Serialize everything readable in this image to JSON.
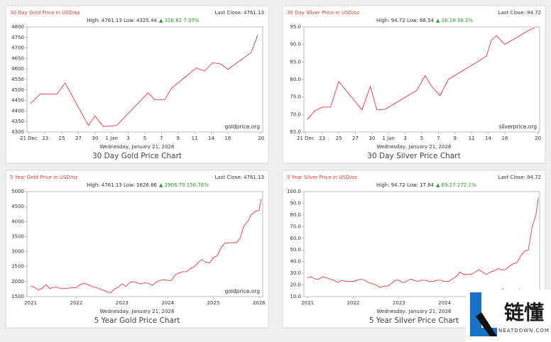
{
  "chart_data": [
    {
      "type": "line",
      "title": "30 Day Gold Price in USD/oz",
      "last_close": "Last Close: 4761.13",
      "stats": "High: 4761.13 Low: 4325.44",
      "change": "▲ 326.82 7.37%",
      "watermark": "goldprice.org",
      "date": "Wednesday, January 21, 2026",
      "caption": "30 Day Gold Price Chart",
      "x": [
        0.1,
        0.7,
        1.2,
        1.7,
        2.2,
        3.6,
        4.0,
        4.5,
        5.3,
        7.2,
        7.6,
        8.2,
        8.6,
        10.1,
        10.6,
        11.1,
        11.6,
        12.0,
        13.4,
        13.8
      ],
      "series": [
        {
          "color": "#e8383d",
          "values": [
            4435,
            4480,
            4481,
            4480,
            4533,
            4331,
            4376,
            4326,
            4331,
            4487,
            4453,
            4453,
            4508,
            4605,
            4590,
            4630,
            4623,
            4598,
            4678,
            4761.13
          ]
        }
      ],
      "xlim": [
        -0.1,
        14.1
      ],
      "ylim": [
        4300,
        4800
      ],
      "xticks": [
        {
          "value": 0,
          "label": "21 Dec"
        },
        {
          "value": 1,
          "label": "23"
        },
        {
          "value": 2,
          "label": "25"
        },
        {
          "value": 3,
          "label": "27"
        },
        {
          "value": 4,
          "label": "30"
        },
        {
          "value": 5,
          "label": "1 Jan"
        },
        {
          "value": 6,
          "label": "3"
        },
        {
          "value": 7,
          "label": "5"
        },
        {
          "value": 8,
          "label": "7"
        },
        {
          "value": 9,
          "label": "9"
        },
        {
          "value": 10,
          "label": "11"
        },
        {
          "value": 11,
          "label": "14"
        },
        {
          "value": 12,
          "label": "16"
        },
        {
          "value": 14,
          "label": "20"
        }
      ],
      "yticks": [
        4300,
        4350,
        4400,
        4450,
        4500,
        4550,
        4600,
        4650,
        4700,
        4750,
        4800
      ]
    },
    {
      "type": "line",
      "title": "30 Day Silver Price in USD/oz",
      "last_close": "Last Close: 94.72",
      "stats": "High: 94.72 Low: 68.54",
      "change": "▲ 26.18 38.2%",
      "watermark": "silverprice.org",
      "date": "Wednesday, January 21, 2026",
      "caption": "30 Day Silver Price Chart",
      "x": [
        0.1,
        0.55,
        1.0,
        1.5,
        2.0,
        3.4,
        3.9,
        4.3,
        4.8,
        6.7,
        7.2,
        7.6,
        8.1,
        8.6,
        10.4,
        10.9,
        11.2,
        11.5,
        12.0,
        13.5,
        13.8
      ],
      "series": [
        {
          "color": "#e8383d",
          "values": [
            68.54,
            71,
            72.1,
            72.1,
            79.4,
            71.3,
            78,
            71.3,
            71.5,
            76.9,
            81.1,
            78,
            75.4,
            80,
            85.2,
            86.7,
            91.3,
            92.5,
            90,
            94.2,
            94.72
          ]
        }
      ],
      "xlim": [
        -0.1,
        14.1
      ],
      "ylim": [
        65,
        95
      ],
      "xticks": [
        {
          "value": 0,
          "label": "21 Dec"
        },
        {
          "value": 1,
          "label": "23"
        },
        {
          "value": 2,
          "label": "25"
        },
        {
          "value": 3,
          "label": "27"
        },
        {
          "value": 4,
          "label": "30"
        },
        {
          "value": 5,
          "label": "1 Jan"
        },
        {
          "value": 6,
          "label": "3"
        },
        {
          "value": 7,
          "label": "5"
        },
        {
          "value": 8,
          "label": "7"
        },
        {
          "value": 9,
          "label": "9"
        },
        {
          "value": 10,
          "label": "11"
        },
        {
          "value": 11,
          "label": "14"
        },
        {
          "value": 12,
          "label": "16"
        },
        {
          "value": 14,
          "label": "20"
        }
      ],
      "yticks": [
        {
          "value": 65,
          "label": "65.0"
        },
        {
          "value": 70,
          "label": "70.0"
        },
        {
          "value": 75,
          "label": "75.0"
        },
        {
          "value": 80,
          "label": "80.0"
        },
        {
          "value": 85,
          "label": "85.0"
        },
        {
          "value": 90,
          "label": "90.0"
        },
        {
          "value": 95,
          "label": "95.0"
        }
      ]
    },
    {
      "type": "line",
      "title": "5 Year Gold Price in USD/oz",
      "last_close": "Last Close: 4761.13",
      "stats": "High: 4761.13 Low: 1626.86",
      "change": "▲ 2906.79 156.76%",
      "watermark": "goldprice.org",
      "date": "Wednesday, January 21, 2026",
      "caption": "5 Year Gold Price Chart",
      "x": [
        2021,
        2021.083,
        2021.167,
        2021.25,
        2021.333,
        2021.417,
        2021.5,
        2021.583,
        2021.667,
        2021.75,
        2021.833,
        2021.917,
        2022,
        2022.083,
        2022.167,
        2022.25,
        2022.333,
        2022.417,
        2022.5,
        2022.583,
        2022.667,
        2022.75,
        2022.833,
        2022.917,
        2023,
        2023.083,
        2023.167,
        2023.25,
        2023.333,
        2023.417,
        2023.5,
        2023.583,
        2023.667,
        2023.75,
        2023.833,
        2023.917,
        2024,
        2024.083,
        2024.167,
        2024.25,
        2024.333,
        2024.417,
        2024.5,
        2024.583,
        2024.667,
        2024.75,
        2024.833,
        2024.917,
        2025,
        2025.083,
        2025.167,
        2025.25,
        2025.333,
        2025.417,
        2025.5,
        2025.583,
        2025.667,
        2025.75,
        2025.833,
        2025.917,
        2026,
        2026.05
      ],
      "series": [
        {
          "color": "#e8383d",
          "values": [
            1850,
            1810,
            1720,
            1770,
            1900,
            1770,
            1810,
            1810,
            1760,
            1780,
            1780,
            1800,
            1800,
            1900,
            1940,
            1900,
            1840,
            1810,
            1760,
            1720,
            1660,
            1626.86,
            1750,
            1810,
            1930,
            1830,
            1970,
            2000,
            1960,
            1920,
            1960,
            1940,
            1870,
            1990,
            2040,
            2060,
            2040,
            2040,
            2230,
            2290,
            2330,
            2330,
            2440,
            2500,
            2630,
            2740,
            2650,
            2620,
            2800,
            2860,
            3120,
            3290,
            3290,
            3300,
            3290,
            3440,
            3850,
            4000,
            4230,
            4330,
            4380,
            4761.13
          ]
        }
      ],
      "xlim": [
        2020.92,
        2026.08
      ],
      "ylim": [
        1500,
        5000
      ],
      "xticks": [
        2021,
        2022,
        2023,
        2024,
        2025,
        2026
      ],
      "yticks": [
        1500,
        2000,
        2500,
        3000,
        3500,
        4000,
        4500,
        5000
      ]
    },
    {
      "type": "line",
      "title": "5 Year Silver Price in USD/oz",
      "last_close": "Last Close: 94.72",
      "stats": "High: 94.72 Low: 17.84",
      "change": "▲ 69.27 272.1%",
      "watermark": "silverprice.org",
      "date": "Wednesday, January 21, 2026",
      "caption": "5 Year Silver Price Chart",
      "x": [
        2021,
        2021.083,
        2021.167,
        2021.25,
        2021.333,
        2021.417,
        2021.5,
        2021.583,
        2021.667,
        2021.75,
        2021.833,
        2021.917,
        2022,
        2022.083,
        2022.167,
        2022.25,
        2022.333,
        2022.417,
        2022.5,
        2022.583,
        2022.667,
        2022.75,
        2022.833,
        2022.917,
        2023,
        2023.083,
        2023.167,
        2023.25,
        2023.333,
        2023.417,
        2023.5,
        2023.583,
        2023.667,
        2023.75,
        2023.833,
        2023.917,
        2024,
        2024.083,
        2024.167,
        2024.25,
        2024.333,
        2024.417,
        2024.5,
        2024.583,
        2024.667,
        2024.75,
        2024.833,
        2024.917,
        2025,
        2025.083,
        2025.167,
        2025.25,
        2025.333,
        2025.417,
        2025.5,
        2025.583,
        2025.667,
        2025.75,
        2025.833,
        2025.917,
        2026,
        2026.05
      ],
      "series": [
        {
          "color": "#e8383d",
          "values": [
            26,
            27,
            25,
            25,
            27,
            26,
            25,
            24,
            22,
            24,
            23,
            23,
            23,
            24,
            25,
            24,
            22,
            21,
            20,
            17.84,
            19,
            19,
            21,
            24,
            24,
            22,
            23,
            25,
            24,
            23,
            24,
            24,
            23,
            23,
            24,
            24,
            23,
            23,
            25,
            27,
            31,
            29,
            29,
            29,
            31,
            33,
            31,
            29,
            31,
            32,
            34,
            33,
            33,
            36,
            38,
            39,
            45,
            49,
            50,
            70,
            80,
            94.72
          ]
        }
      ],
      "xlim": [
        2020.92,
        2026.08
      ],
      "ylim": [
        10,
        100
      ],
      "xticks": [
        2021,
        2022,
        2023,
        2024,
        2025,
        2026
      ],
      "yticks": [
        {
          "value": 10,
          "label": "10.0"
        },
        {
          "value": 20,
          "label": "20.0"
        },
        {
          "value": 30,
          "label": "30.0"
        },
        {
          "value": 40,
          "label": "40.0"
        },
        {
          "value": 50,
          "label": "50.0"
        },
        {
          "value": 60,
          "label": "60.0"
        },
        {
          "value": 70,
          "label": "70.0"
        },
        {
          "value": 80,
          "label": "80.0"
        },
        {
          "value": 90,
          "label": "90.0"
        },
        {
          "value": 100,
          "label": "100.0"
        }
      ]
    }
  ],
  "logo": {
    "text": "链懂",
    "sub": "NEATDOWN.COM"
  }
}
